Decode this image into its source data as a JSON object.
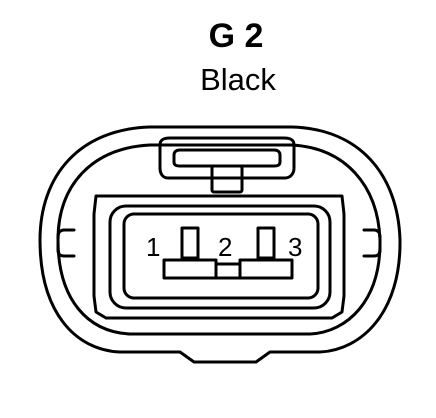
{
  "connector": {
    "id": "G 2",
    "color_label": "Black",
    "pins": [
      "1",
      "2",
      "3"
    ]
  },
  "colors": {
    "line": "#000000",
    "background": "#ffffff"
  }
}
